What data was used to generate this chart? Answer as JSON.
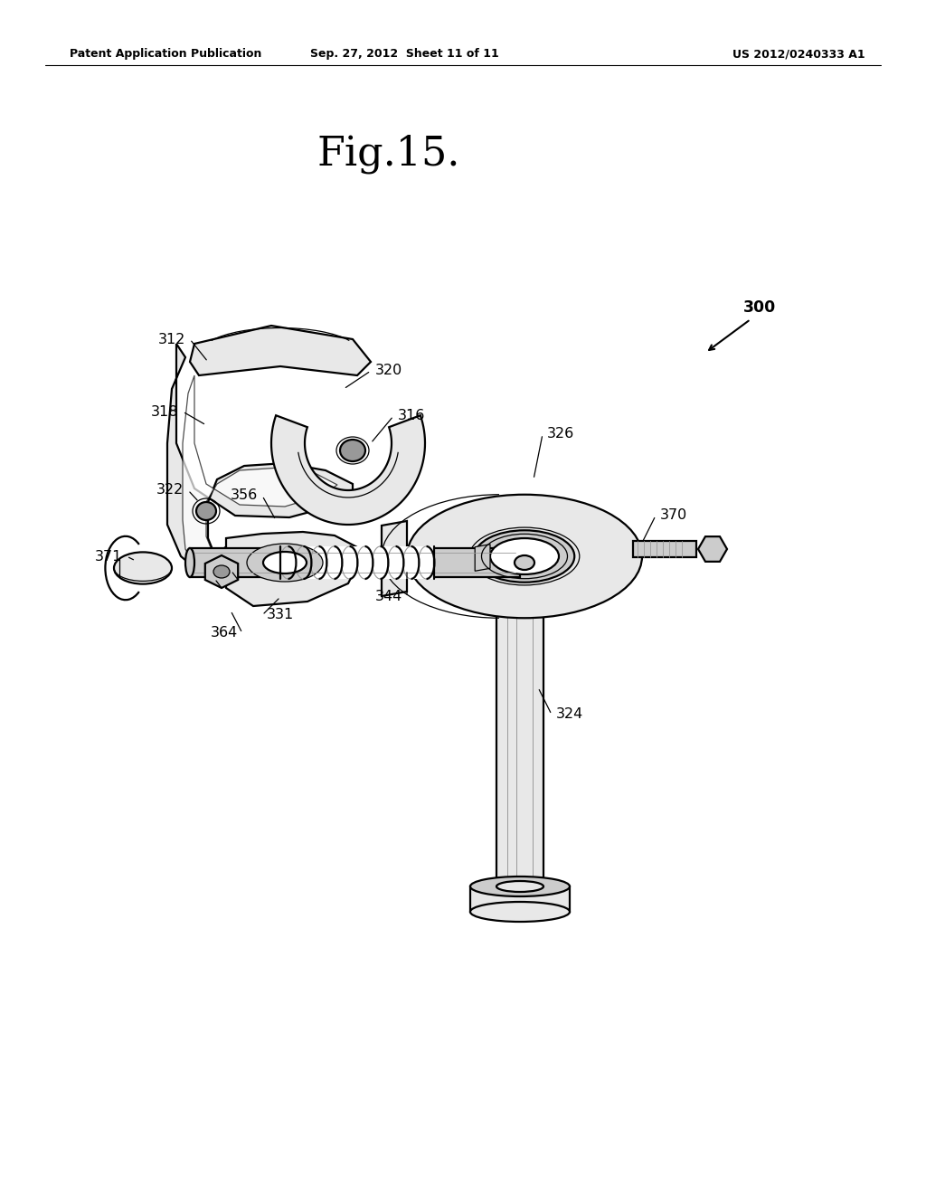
{
  "title": "Fig.15.",
  "header_left": "Patent Application Publication",
  "header_center": "Sep. 27, 2012  Sheet 11 of 11",
  "header_right": "US 2012/0240333 A1",
  "background_color": "#ffffff",
  "line_color": "#000000",
  "fig_title_fontsize": 32,
  "header_fontsize": 9,
  "label_fontsize": 11.5,
  "lw_main": 1.6,
  "lw_thin": 0.9,
  "gray_light": "#e8e8e8",
  "gray_mid": "#cccccc",
  "gray_dark": "#999999",
  "white": "#ffffff"
}
